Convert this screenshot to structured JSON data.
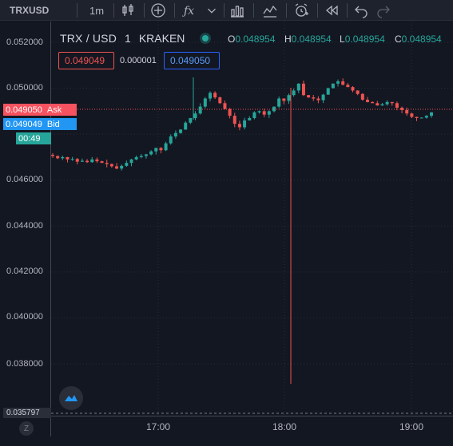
{
  "toolbar": {
    "symbol": "TRXUSD",
    "interval": "1m",
    "icons": [
      "candles-icon",
      "indicators-icon",
      "fx-icon",
      "chevron-down-icon",
      "compare-icon",
      "chart-type-icon",
      "alert-icon",
      "replay-icon",
      "undo-icon",
      "redo-icon"
    ]
  },
  "legend": {
    "pair": "TRX / USD",
    "interval": "1",
    "exchange": "KRAKEN",
    "o_key": "O",
    "o_val": "0.048954",
    "h_key": "H",
    "h_val": "0.048954",
    "l_key": "L",
    "l_val": "0.048954",
    "c_key": "C",
    "c_val": "0.048954"
  },
  "quote": {
    "sell": "0.049049",
    "spread": "0.000001",
    "buy": "0.049050"
  },
  "tags": {
    "ask_price": "0.049050",
    "ask_label": "Ask",
    "bid_price": "0.049049",
    "bid_label": "Bid",
    "timer": "00:49",
    "low": "0.035797"
  },
  "price_axis": [
    "0.052000",
    "0.050000",
    "0.046000",
    "0.044000",
    "0.042000",
    "0.040000",
    "0.038000"
  ],
  "time_axis": [
    "17:00",
    "18:00",
    "19:00"
  ],
  "z_button": "Z",
  "colors": {
    "up": "#26a69a",
    "down": "#ef5350",
    "background": "#131722"
  },
  "chart_data": {
    "type": "candlestick",
    "ylim": [
      0.0358,
      0.0527
    ],
    "grid": true,
    "close_series": [
      0.04705,
      0.04695,
      0.047,
      0.0469,
      0.04692,
      0.0468,
      0.04684,
      0.04678,
      0.0469,
      0.04682,
      0.04675,
      0.0467,
      0.0466,
      0.0465,
      0.04662,
      0.04675,
      0.0469,
      0.047,
      0.04705,
      0.04712,
      0.04725,
      0.0474,
      0.0473,
      0.0476,
      0.0479,
      0.04805,
      0.0482,
      0.0485,
      0.0487,
      0.0489,
      0.0492,
      0.04955,
      0.0498,
      0.0496,
      0.04935,
      0.0491,
      0.0488,
      0.04845,
      0.0483,
      0.0486,
      0.0487,
      0.04895,
      0.049,
      0.04885,
      0.049,
      0.0492,
      0.04955,
      0.04945,
      0.0497,
      0.0499,
      0.0502,
      0.0497,
      0.0496,
      0.04955,
      0.04948,
      0.04972,
      0.05,
      0.0502,
      0.0503,
      0.05015,
      0.05005,
      0.0499,
      0.04975,
      0.0495,
      0.0494,
      0.04935,
      0.04925,
      0.0493,
      0.0494,
      0.04935,
      0.04915,
      0.04905,
      0.0489,
      0.04875,
      0.0487,
      0.04872,
      0.0488,
      0.04895
    ]
  }
}
